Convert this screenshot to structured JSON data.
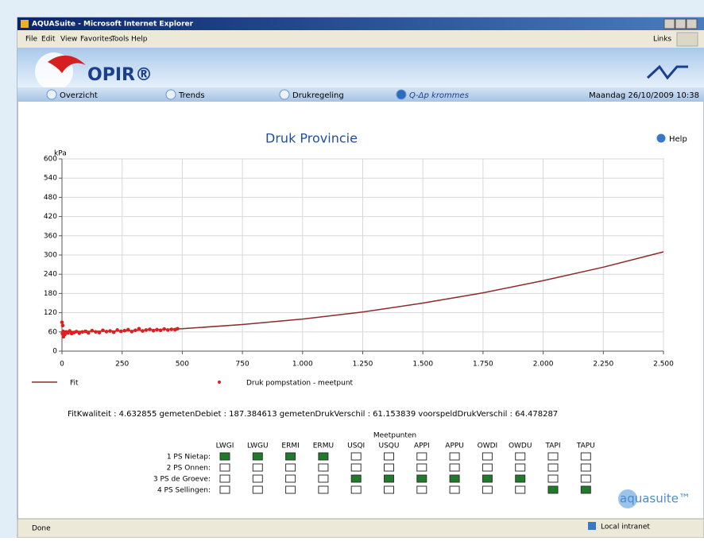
{
  "window": {
    "title": "AQUASuite - Microsoft Internet Explorer",
    "menu": [
      "File",
      "Edit",
      "View",
      "Favorites",
      "Tools",
      "Help"
    ],
    "links": "Links",
    "status": "Done",
    "zone": "Local intranet"
  },
  "header": {
    "logo": "OPIR®",
    "brand": "aquasuite™"
  },
  "nav": {
    "items": [
      "Overzicht",
      "Trends",
      "Drukregeling",
      "Q-Δp krommes"
    ],
    "date": "Maandag 26/10/2009 10:38",
    "help": "Help"
  },
  "chart": {
    "type": "line-scatter",
    "title": "Druk Provincie",
    "y_label": "kPa",
    "xlim": [
      0,
      2500
    ],
    "ylim": [
      0,
      600
    ],
    "xticks": [
      0,
      250,
      500,
      750,
      {
        "value": 1000,
        "label": "1.000"
      },
      {
        "value": 1250,
        "label": "1.250"
      },
      {
        "value": 1500,
        "label": "1.500"
      },
      {
        "value": 1750,
        "label": "1.750"
      },
      {
        "value": 2000,
        "label": "2.000"
      },
      {
        "value": 2250,
        "label": "2.250"
      },
      {
        "value": 2500,
        "label": "2.500"
      }
    ],
    "yticks": [
      0,
      60,
      120,
      180,
      240,
      300,
      360,
      420,
      480,
      540,
      600
    ],
    "grid": true,
    "series": [
      {
        "name": "Fit",
        "type": "line",
        "color": "#8b2b2b",
        "x": [
          0,
          250,
          500,
          750,
          1000,
          1250,
          1500,
          1750,
          2000,
          2250,
          2500
        ],
        "values": [
          61,
          63,
          70,
          83,
          100,
          122,
          150,
          182,
          220,
          262,
          310
        ]
      },
      {
        "name": "Druk pompstation - meetpunt",
        "type": "scatter",
        "color": "#e02020",
        "x": [
          2,
          5,
          8,
          12,
          18,
          25,
          32,
          40,
          50,
          60,
          72,
          85,
          98,
          110,
          125,
          140,
          155,
          170,
          185,
          200,
          215,
          230,
          245,
          260,
          275,
          290,
          305,
          320,
          335,
          350,
          365,
          380,
          395,
          410,
          425,
          440,
          455,
          470,
          480,
          0,
          3,
          6
        ],
        "values": [
          55,
          62,
          58,
          52,
          60,
          57,
          63,
          55,
          58,
          61,
          56,
          60,
          62,
          57,
          64,
          60,
          58,
          65,
          61,
          63,
          59,
          66,
          62,
          64,
          67,
          61,
          65,
          70,
          63,
          66,
          68,
          64,
          67,
          65,
          69,
          66,
          68,
          67,
          70,
          90,
          80,
          45
        ]
      }
    ]
  },
  "stats": "FitKwaliteit : 4.632855 gemetenDebiet : 187.384613 gemetenDrukVerschil : 61.153839 voorspeldDrukVerschil : 64.478287",
  "meetpunten": {
    "title": "Meetpunten",
    "columns": [
      "LWGI",
      "LWGU",
      "ERMI",
      "ERMU",
      "USQI",
      "USQU",
      "APPI",
      "APPU",
      "OWDI",
      "OWDU",
      "TAPI",
      "TAPU"
    ],
    "rows": [
      {
        "label": "1 PS Nietap:",
        "states": [
          true,
          true,
          true,
          true,
          false,
          false,
          false,
          false,
          false,
          false,
          false,
          false
        ]
      },
      {
        "label": "2 PS Onnen:",
        "states": [
          false,
          false,
          false,
          false,
          false,
          false,
          false,
          false,
          false,
          false,
          false,
          false
        ]
      },
      {
        "label": "3 PS de Groeve:",
        "states": [
          false,
          false,
          false,
          false,
          true,
          true,
          true,
          true,
          true,
          true,
          false,
          false
        ]
      },
      {
        "label": "4 PS Sellingen:",
        "states": [
          false,
          false,
          false,
          false,
          false,
          false,
          false,
          false,
          false,
          false,
          true,
          true
        ]
      }
    ]
  }
}
